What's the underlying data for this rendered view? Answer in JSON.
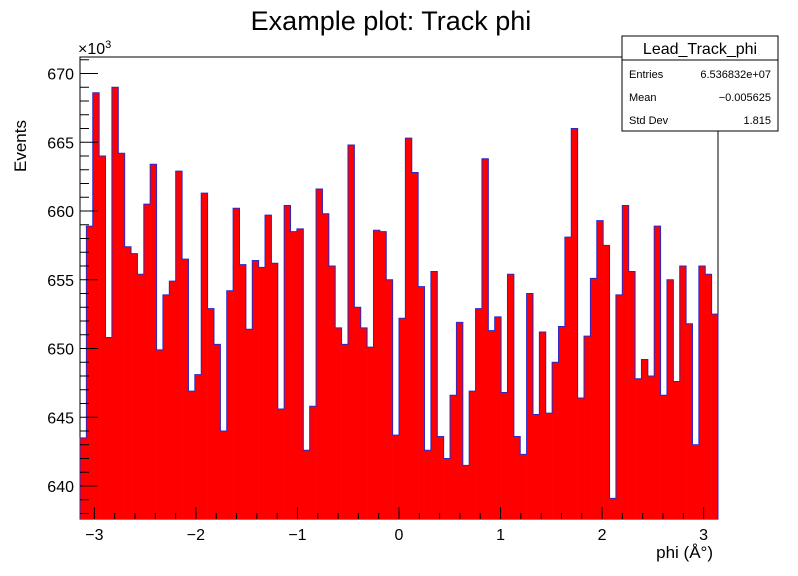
{
  "chart_data": {
    "type": "bar",
    "title": "Example plot: Track phi",
    "xlabel": "phi (Å°)",
    "ylabel": "Events",
    "y_multiplier_label": "×10",
    "y_multiplier_exponent": "3",
    "xlim": [
      -3.1416,
      3.1416
    ],
    "ylim": [
      637.6,
      671.2
    ],
    "x_ticks": [
      -3,
      -2,
      -1,
      0,
      1,
      2,
      3
    ],
    "x_tick_labels": [
      "−3",
      "−2",
      "−1",
      "0",
      "1",
      "2",
      "3"
    ],
    "y_ticks": [
      640,
      645,
      650,
      655,
      660,
      665,
      670
    ],
    "y_tick_labels": [
      "640",
      "645",
      "650",
      "655",
      "660",
      "665",
      "670"
    ],
    "bins": 100,
    "values": [
      643.5,
      658.9,
      668.6,
      664.0,
      650.8,
      669.0,
      664.2,
      657.4,
      656.9,
      655.4,
      660.5,
      663.4,
      649.9,
      653.9,
      654.9,
      662.9,
      656.5,
      646.9,
      648.1,
      661.3,
      652.9,
      650.3,
      644.0,
      654.2,
      660.2,
      656.1,
      651.4,
      656.4,
      655.9,
      659.7,
      656.2,
      645.6,
      660.4,
      658.5,
      658.7,
      642.6,
      645.8,
      661.6,
      659.8,
      656.0,
      651.5,
      650.3,
      664.8,
      653.0,
      651.5,
      650.1,
      658.6,
      658.5,
      655.0,
      643.7,
      652.2,
      665.3,
      662.8,
      654.5,
      642.6,
      655.6,
      643.6,
      642.0,
      646.6,
      651.9,
      641.5,
      646.9,
      652.9,
      663.8,
      651.3,
      652.3,
      646.8,
      655.4,
      643.6,
      642.3,
      654.0,
      645.2,
      651.2,
      645.3,
      649.0,
      651.6,
      658.1,
      666.0,
      646.4,
      650.9,
      655.1,
      659.3,
      657.5,
      639.1,
      653.9,
      660.4,
      655.6,
      647.8,
      649.2,
      648.0,
      658.9,
      646.6,
      655.0,
      647.6,
      656.0,
      651.8,
      643.0,
      656.0,
      655.4,
      652.5
    ],
    "fill_color": "#ff0000",
    "line_color": "#2b28c9",
    "grid": false,
    "legend": "top-right"
  },
  "stats_box": {
    "title": "Lead_Track_phi",
    "rows": [
      {
        "label": "Entries",
        "value": "6.536832e+07"
      },
      {
        "label": "Mean",
        "value": "−0.005625"
      },
      {
        "label": "Std Dev",
        "value": "1.815"
      }
    ]
  }
}
